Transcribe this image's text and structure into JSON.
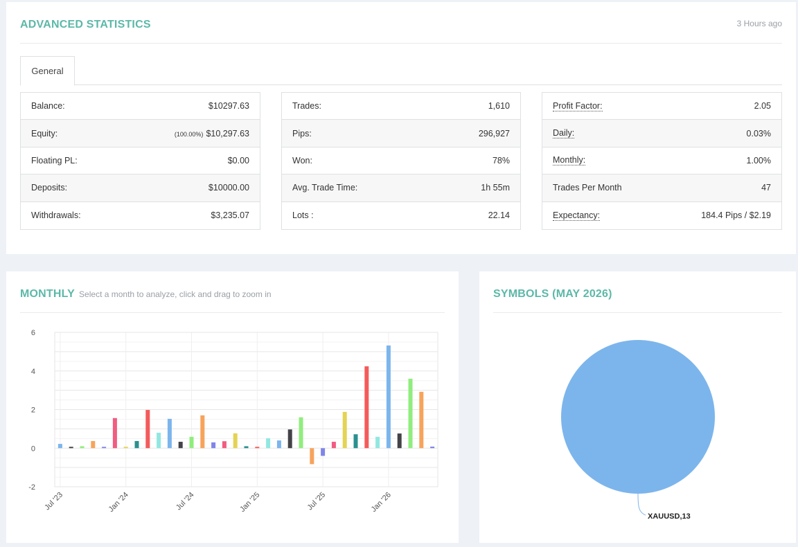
{
  "header": {
    "title": "ADVANCED STATISTICS",
    "updated": "3 Hours ago",
    "tabs": [
      {
        "label": "General",
        "active": true
      }
    ]
  },
  "stats": {
    "col1": [
      {
        "label": "Balance:",
        "value": "$10297.63"
      },
      {
        "label": "Equity:",
        "prefix": "(100.00%)",
        "value": "$10,297.63"
      },
      {
        "label": "Floating PL:",
        "value": "$0.00"
      },
      {
        "label": "Deposits:",
        "value": "$10000.00"
      },
      {
        "label": "Withdrawals:",
        "value": "$3,235.07"
      }
    ],
    "col2": [
      {
        "label": "Trades:",
        "value": "1,610"
      },
      {
        "label": "Pips:",
        "value": "296,927"
      },
      {
        "label": "Won:",
        "value": "78%"
      },
      {
        "label": "Avg. Trade Time:",
        "value": "1h 55m"
      },
      {
        "label": "Lots :",
        "value": "22.14"
      }
    ],
    "col3": [
      {
        "label": "Profit Factor:",
        "value": "2.05",
        "dotted": true
      },
      {
        "label": "Daily:",
        "value": "0.03%",
        "dotted": true
      },
      {
        "label": "Monthly:",
        "value": "1.00%",
        "dotted": true
      },
      {
        "label": "Trades Per Month",
        "value": "47",
        "dotted": false
      },
      {
        "label": "Expectancy:",
        "value": "184.4 Pips / $2.19",
        "dotted": true
      }
    ]
  },
  "monthly": {
    "title": "MONTHLY",
    "subtitle": "Select a month to analyze, click and drag to zoom in"
  },
  "symbols": {
    "title": "SYMBOLS (MAY 2026)"
  },
  "chart_data": [
    {
      "type": "bar",
      "title": "",
      "xlabel": "",
      "ylabel": "",
      "ylim": [
        -2,
        6
      ],
      "yticks": [
        -2,
        0,
        2,
        4,
        6
      ],
      "xticks": [
        "Jul '23",
        "Jan '24",
        "Jul '24",
        "Jan '25",
        "Jul '25",
        "Jan '26"
      ],
      "grid": true,
      "legend": "none",
      "categories": [
        "Jul '23",
        "Aug '23",
        "Sep '23",
        "Oct '23",
        "Nov '23",
        "Dec '23",
        "Jan '24",
        "Feb '24",
        "Mar '24",
        "Apr '24",
        "May '24",
        "Jun '24",
        "Jul '24",
        "Aug '24",
        "Sep '24",
        "Oct '24",
        "Nov '24",
        "Dec '24",
        "Jan '25",
        "Feb '25",
        "Mar '25",
        "Apr '25",
        "May '25",
        "Jun '25",
        "Jul '25",
        "Aug '25",
        "Sep '25",
        "Oct '25",
        "Nov '25",
        "Dec '25",
        "Jan '26",
        "Feb '26",
        "Mar '26",
        "Apr '26",
        "May '26"
      ],
      "values": [
        0.22,
        0.07,
        0.1,
        0.37,
        0.07,
        1.56,
        0.07,
        0.37,
        1.98,
        0.8,
        1.52,
        0.33,
        0.59,
        1.7,
        0.3,
        0.36,
        0.77,
        0.1,
        0.07,
        0.51,
        0.4,
        0.97,
        1.6,
        -0.83,
        -0.4,
        0.33,
        1.88,
        0.72,
        4.24,
        0.59,
        5.32,
        0.76,
        3.6,
        2.92,
        0.08
      ],
      "colors": [
        "#7cb5ec",
        "#434348",
        "#90ed7d",
        "#f7a35c",
        "#8085e9",
        "#f15c80",
        "#e4d354",
        "#2b908f",
        "#f45b5b",
        "#91e8e1",
        "#7cb5ec",
        "#434348",
        "#90ed7d",
        "#f7a35c",
        "#8085e9",
        "#f15c80",
        "#e4d354",
        "#2b908f",
        "#f45b5b",
        "#91e8e1",
        "#7cb5ec",
        "#434348",
        "#90ed7d",
        "#f7a35c",
        "#8085e9",
        "#f15c80",
        "#e4d354",
        "#2b908f",
        "#f45b5b",
        "#91e8e1",
        "#7cb5ec",
        "#434348",
        "#90ed7d",
        "#f7a35c",
        "#8085e9"
      ]
    },
    {
      "type": "pie",
      "title": "",
      "slices": [
        {
          "label": "XAUUSD",
          "value": 13,
          "color": "#7cb5ec",
          "display": "XAUUSD,13"
        }
      ]
    }
  ]
}
